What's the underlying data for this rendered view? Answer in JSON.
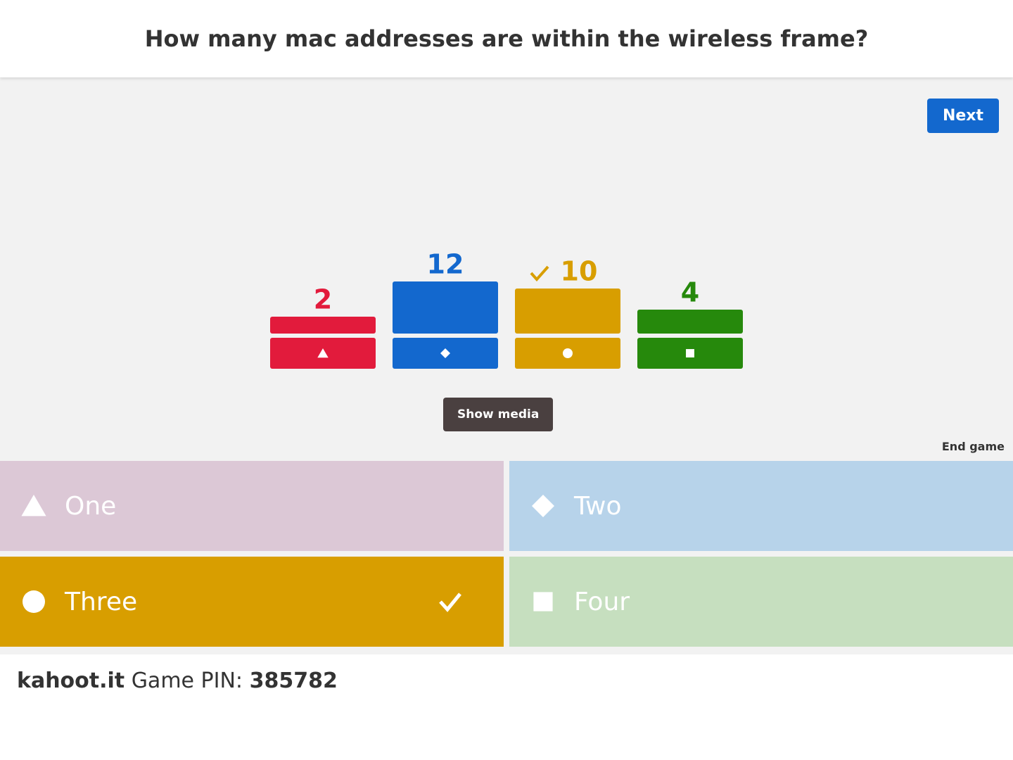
{
  "header": {
    "question": "How many mac addresses are within the wireless frame?"
  },
  "controls": {
    "next": "Next",
    "show_media": "Show media",
    "end_game": "End game"
  },
  "results": {
    "type": "bar",
    "values": [
      2,
      12,
      10,
      4
    ],
    "colors": [
      "#e21b3c",
      "#1368ce",
      "#d89e00",
      "#26890c"
    ],
    "correct": [
      false,
      false,
      true,
      false
    ]
  },
  "answers": [
    {
      "label": "One",
      "shape": "triangle",
      "correct": false
    },
    {
      "label": "Two",
      "shape": "diamond",
      "correct": false
    },
    {
      "label": "Three",
      "shape": "circle",
      "correct": true
    },
    {
      "label": "Four",
      "shape": "square",
      "correct": false
    }
  ],
  "footer": {
    "site": "kahoot.it",
    "pin_label": "Game PIN:",
    "pin": "385782"
  }
}
